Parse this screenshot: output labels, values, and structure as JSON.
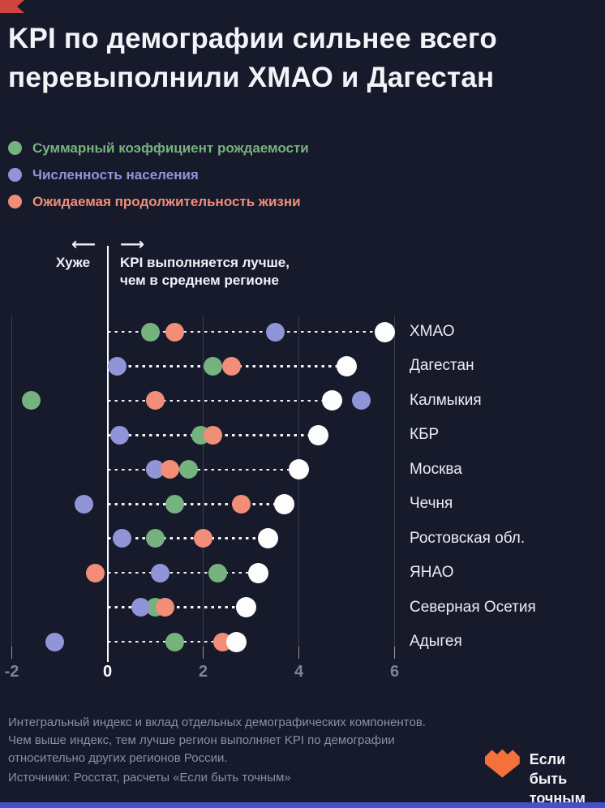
{
  "page": {
    "background": "#161a2b",
    "bottom_bar_color": "#4252ca",
    "corner_flag_color": "#d0453f"
  },
  "title": {
    "line1": "KPI по демографии сильнее всего",
    "line2": "перевыполнили ХМАО и Дагестан"
  },
  "legend": {
    "items": [
      {
        "key": "birth_rate",
        "label": "Суммарный коэффициент рождаемости",
        "color": "#76b27e"
      },
      {
        "key": "population",
        "label": "Численность населения",
        "color": "#9095d8"
      },
      {
        "key": "life_expectancy",
        "label": "Ожидаемая продолжительность жизни",
        "color": "#f28e77"
      }
    ]
  },
  "annotation": {
    "left_arrow": "⟵",
    "right_arrow": "⟶",
    "worse_label": "Хуже",
    "better_line1": "KPI выполняется лучше,",
    "better_line2": "чем в среднем регионе"
  },
  "chart_data": {
    "type": "scatter",
    "subtype": "horizontal_dot_plot",
    "x_ticks": [
      -2,
      0,
      2,
      4,
      6
    ],
    "x_range": [
      -2.25,
      6.6
    ],
    "zero_axis_highlighted": true,
    "total_series": {
      "name": "Интегральный индекс",
      "color": "#fdfdfd"
    },
    "component_draw_order": [
      "birth_rate",
      "population",
      "life_expectancy"
    ],
    "rows": [
      {
        "region": "ХМАО",
        "birth_rate": 0.9,
        "population": 3.5,
        "life_expectancy": 1.4,
        "total": 5.8
      },
      {
        "region": "Дагестан",
        "birth_rate": 2.2,
        "population": 0.2,
        "life_expectancy": 2.6,
        "total": 5.0
      },
      {
        "region": "Калмыкия",
        "birth_rate": -1.6,
        "population": 5.3,
        "life_expectancy": 1.0,
        "total": 4.7
      },
      {
        "region": "КБР",
        "birth_rate": 1.95,
        "population": 0.25,
        "life_expectancy": 2.2,
        "total": 4.4
      },
      {
        "region": "Москва",
        "birth_rate": 1.7,
        "population": 1.0,
        "life_expectancy": 1.3,
        "total": 4.0
      },
      {
        "region": "Чечня",
        "birth_rate": 1.4,
        "population": -0.5,
        "life_expectancy": 2.8,
        "total": 3.7
      },
      {
        "region": "Ростовская обл.",
        "birth_rate": 1.0,
        "population": 0.3,
        "life_expectancy": 2.0,
        "total": 3.35
      },
      {
        "region": "ЯНАО",
        "birth_rate": 2.3,
        "population": 1.1,
        "life_expectancy": -0.25,
        "total": 3.15
      },
      {
        "region": "Северная Осетия",
        "birth_rate": 1.0,
        "population": 0.7,
        "life_expectancy": 1.2,
        "total": 2.9
      },
      {
        "region": "Адыгея",
        "birth_rate": 1.4,
        "population": -1.1,
        "life_expectancy": 2.4,
        "total": 2.7
      }
    ]
  },
  "footnote": {
    "line1": "Интегральный индекс и вклад отдельных демографических компонентов.",
    "line2": "Чем выше индекс, тем лучше регион выполняет KPI по демографии",
    "line3": "относительно других регионов России."
  },
  "source": "Источники: Росстат, расчеты «Если быть точным»",
  "logo": {
    "line1": "Если быть",
    "line2": "точным",
    "mark_color": "#f4713c"
  }
}
